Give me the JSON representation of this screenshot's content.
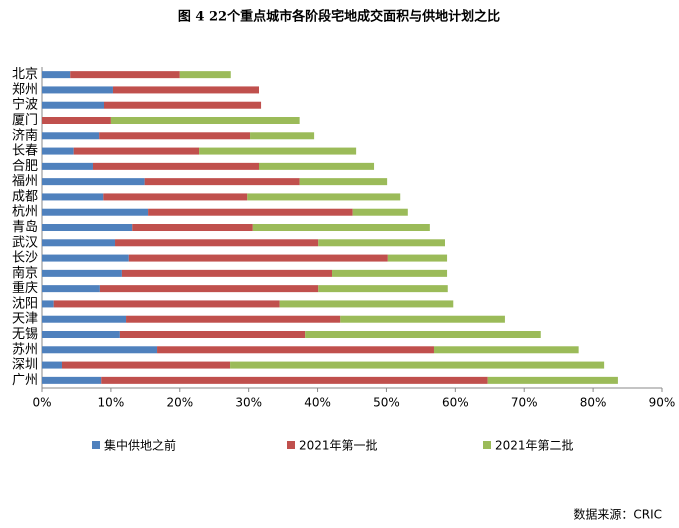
{
  "chart_data": {
    "type": "stacked-barh",
    "title": "图 4   22个重点城市各阶段宅地成交面积与供地计划之比",
    "source": "数据来源：CRIC",
    "categories": [
      "北京",
      "郑州",
      "宁波",
      "厦门",
      "济南",
      "长春",
      "合肥",
      "福州",
      "成都",
      "杭州",
      "青岛",
      "武汉",
      "长沙",
      "南京",
      "重庆",
      "沈阳",
      "天津",
      "无锡",
      "苏州",
      "深圳",
      "广州"
    ],
    "series": [
      {
        "name": "集中供地之前",
        "color": "#4f81bd",
        "values": [
          4.1,
          10.3,
          9.0,
          0,
          8.3,
          4.6,
          7.4,
          14.9,
          8.9,
          15.4,
          13.1,
          10.6,
          12.6,
          11.6,
          8.4,
          1.7,
          12.2,
          11.3,
          16.7,
          2.9,
          8.6
        ]
      },
      {
        "name": "2021年第一批",
        "color": "#c0504d",
        "values": [
          15.9,
          21.2,
          22.8,
          10.0,
          21.9,
          18.2,
          24.1,
          22.5,
          20.9,
          29.7,
          17.5,
          29.5,
          37.6,
          30.5,
          31.7,
          32.8,
          31.1,
          26.9,
          40.2,
          24.4,
          56.1
        ]
      },
      {
        "name": "2021年第二批",
        "color": "#9bbb59",
        "values": [
          7.4,
          0,
          0,
          27.4,
          9.3,
          22.8,
          16.7,
          12.7,
          22.2,
          8.0,
          25.7,
          18.4,
          8.6,
          16.7,
          18.8,
          25.2,
          23.9,
          34.2,
          21.0,
          54.3,
          18.9
        ]
      }
    ],
    "xlim": [
      0,
      90
    ],
    "xticks": [
      {
        "value": 0,
        "label": "0%"
      },
      {
        "value": 10,
        "label": "10%"
      },
      {
        "value": 20,
        "label": "20%"
      },
      {
        "value": 30,
        "label": "30%"
      },
      {
        "value": 40,
        "label": "40%"
      },
      {
        "value": 50,
        "label": "50%"
      },
      {
        "value": 60,
        "label": "60%"
      },
      {
        "value": 70,
        "label": "70%"
      },
      {
        "value": 80,
        "label": "80%"
      },
      {
        "value": 90,
        "label": "90%"
      }
    ],
    "legend": "bottom"
  }
}
